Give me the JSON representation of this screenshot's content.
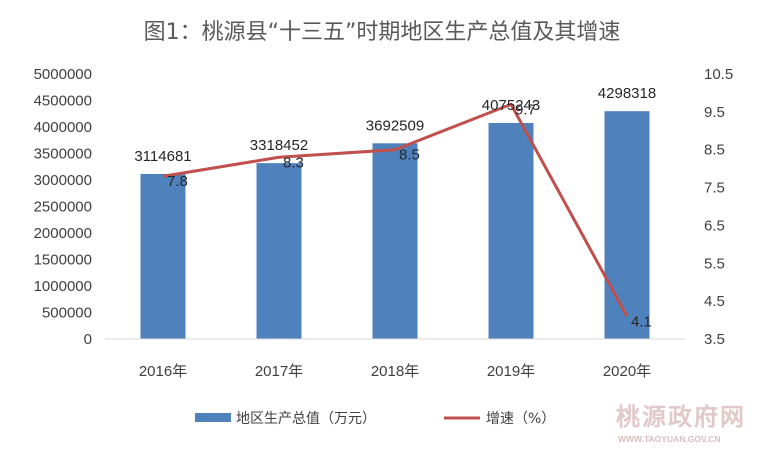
{
  "chart_data": {
    "type": "bar+line",
    "title": "图1：桃源县“十三五”时期地区生产总值及其增速",
    "categories": [
      "2016年",
      "2017年",
      "2018年",
      "2019年",
      "2020年"
    ],
    "series": [
      {
        "name": "地区生产总值（万元）",
        "type": "bar",
        "axis": "left",
        "color": "#4f81bd",
        "values": [
          3114681,
          3318452,
          3692509,
          4075243,
          4298318
        ]
      },
      {
        "name": "增速（%）",
        "type": "line",
        "axis": "right",
        "color": "#c0504d",
        "values": [
          7.8,
          8.3,
          8.5,
          9.7,
          4.1
        ]
      }
    ],
    "left_axis": {
      "min": 0,
      "max": 5000000,
      "step": 500000
    },
    "right_axis": {
      "min": 3.5,
      "max": 10.5,
      "step": 1,
      "ticks": [
        "3.5",
        "4.5",
        "5.5",
        "6.5",
        "7.5",
        "8.5",
        "9.5",
        "10.5"
      ]
    },
    "bar_labels": [
      "3114681",
      "3318452",
      "3692509",
      "4075243",
      "4298318"
    ],
    "line_labels": [
      "7.8",
      "8.3",
      "8.5",
      "9.7",
      "4.1"
    ],
    "legend_position": "bottom",
    "grid": false
  },
  "watermark": {
    "name": "桃源政府网",
    "url": "WWW.TAOYUAN.GOV.CN"
  }
}
